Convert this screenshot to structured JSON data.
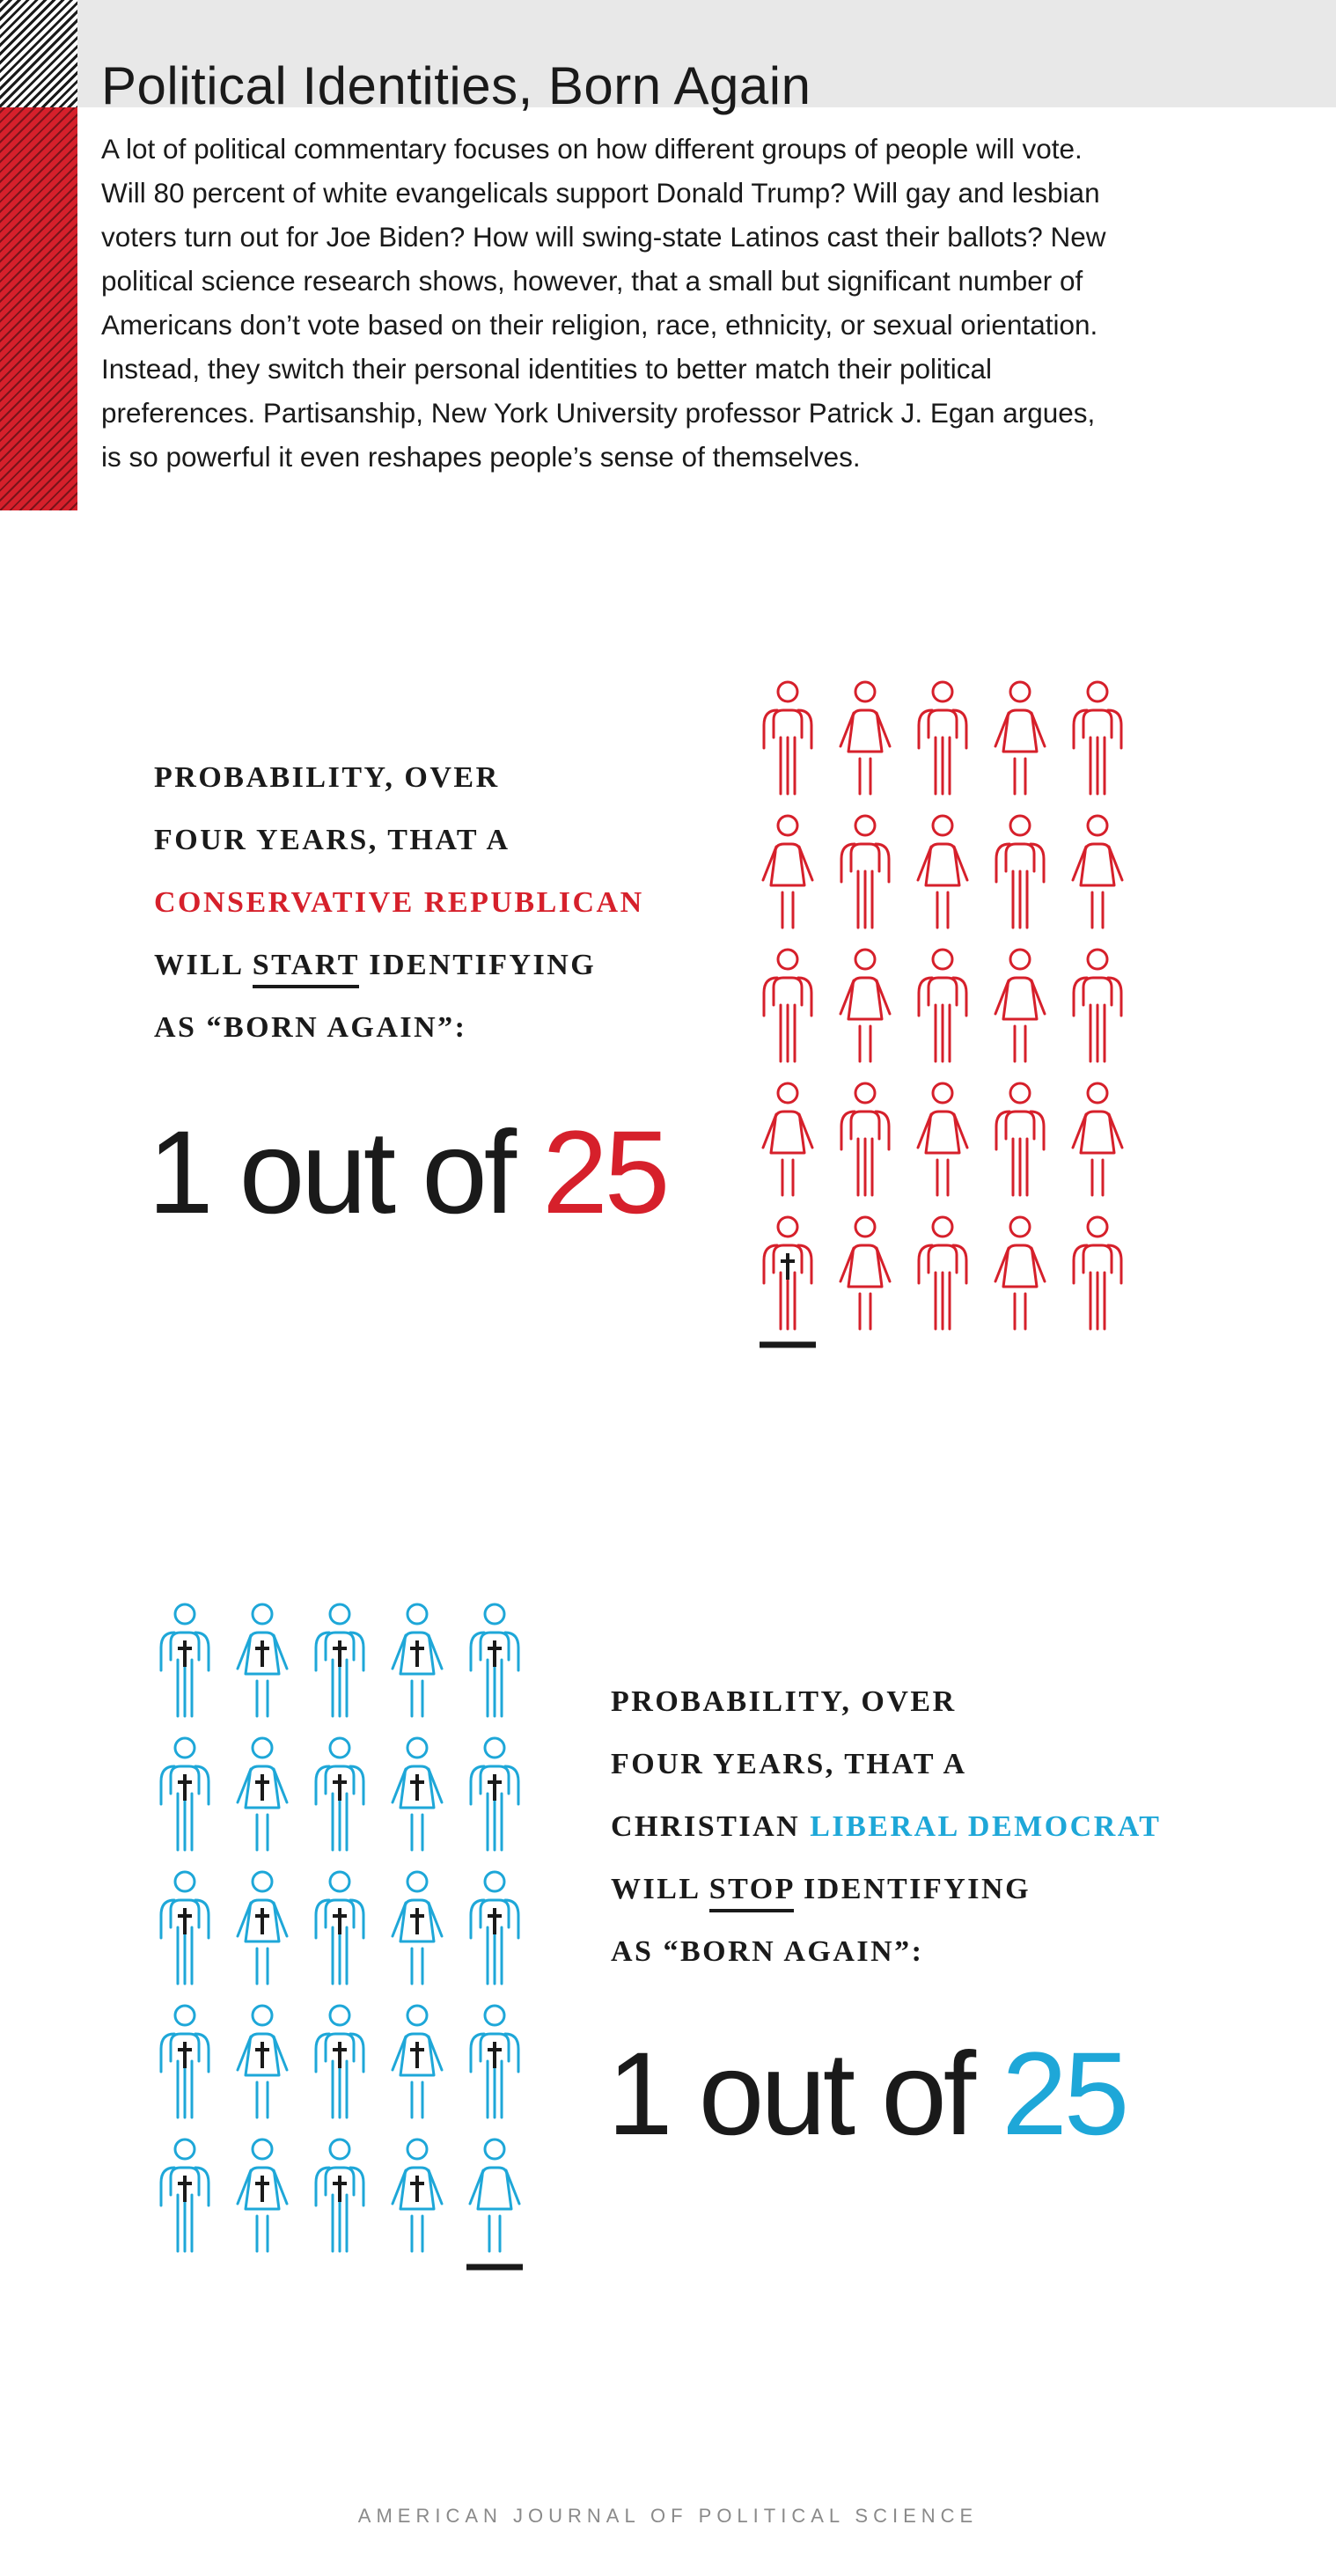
{
  "header": {
    "title": "Political Identities, Born Again",
    "intro": "A lot of political commentary focuses on how different groups of people will vote. Will 80 percent of white evangelicals support Donald Trump? Will gay and lesbian voters turn out for Joe Biden? How will swing-state Latinos cast their ballots? New political science research shows, however, that a small but significant number of Americans don’t vote based on their religion, race, ethnicity, or sexual orientation. Instead, they switch their personal identities to better match their political preferences. Partisanship, New York University professor Patrick J. Egan argues, is so powerful it even reshapes people’s sense of themselves."
  },
  "colors": {
    "red": "#d6202b",
    "blue": "#1ea7d8",
    "ink": "#1a1a1a"
  },
  "panel_republican": {
    "line1": "PROBABILITY, OVER",
    "line2": "FOUR YEARS, THAT A",
    "line3_highlight": "CONSERVATIVE REPUBLICAN",
    "line4_pre": "WILL ",
    "line4_verb": "START",
    "line4_post": " IDENTIFYING",
    "line5": "AS “BORN AGAIN”:",
    "ratio_num": "1",
    "ratio_mid": " out of ",
    "ratio_den": "25",
    "icons_total": 25,
    "icons_marked": 1,
    "icon_color": "red",
    "icon_name": "person-icon",
    "mark_icon_name": "cross-icon"
  },
  "panel_democrat": {
    "line1": "PROBABILITY, OVER",
    "line2": "FOUR YEARS, THAT A",
    "line3_pre": "CHRISTIAN ",
    "line3_highlight": "LIBERAL DEMOCRAT",
    "line4_pre": "WILL ",
    "line4_verb": "STOP",
    "line4_post": " IDENTIFYING",
    "line5": "AS “BORN AGAIN”:",
    "ratio_num": "1",
    "ratio_mid": " out of ",
    "ratio_den": "25",
    "icons_total": 25,
    "icons_marked": 24,
    "icon_color": "blue",
    "icon_name": "person-icon",
    "mark_icon_name": "cross-icon"
  },
  "footer": {
    "source": "AMERICAN JOURNAL OF POLITICAL SCIENCE"
  }
}
